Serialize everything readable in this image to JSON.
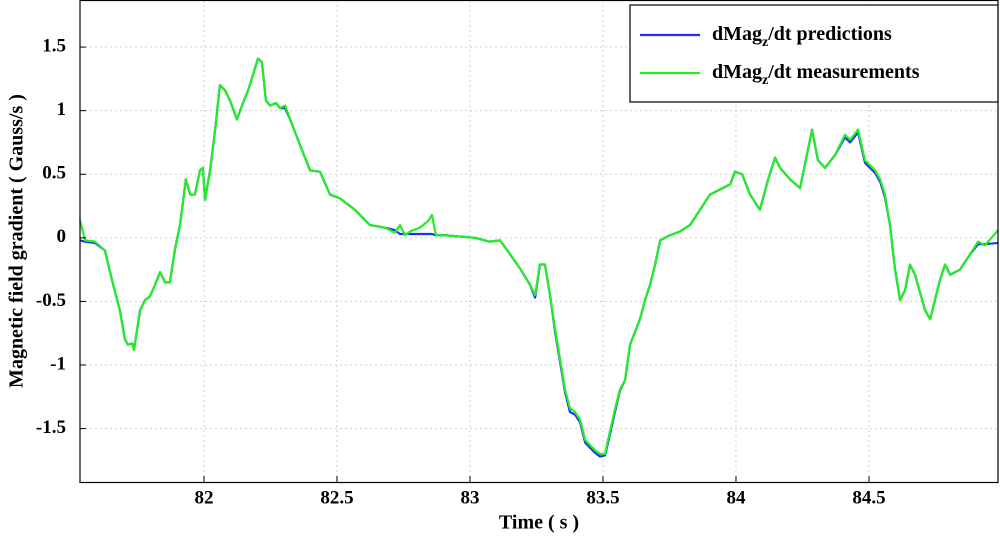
{
  "chart_data": {
    "type": "line",
    "x_label": "Time ( s )",
    "y_label": "Magnetic field gradient ( Gauss/s )",
    "xlim": [
      81.534,
      84.985
    ],
    "ylim": [
      -1.92,
      1.87
    ],
    "xticks": [
      82,
      82.5,
      83,
      83.5,
      84,
      84.5
    ],
    "yticks": [
      -1.5,
      -1,
      -0.5,
      0,
      0.5,
      1,
      1.5
    ],
    "grid": true,
    "legend": "upper right",
    "x": [
      81.534,
      81.553,
      81.59,
      81.628,
      81.654,
      81.684,
      81.703,
      81.714,
      81.73,
      81.737,
      81.76,
      81.778,
      81.797,
      81.816,
      81.835,
      81.854,
      81.872,
      81.891,
      81.91,
      81.932,
      81.948,
      81.966,
      81.985,
      81.996,
      82.004,
      82.023,
      82.042,
      82.06,
      82.079,
      82.098,
      82.124,
      82.143,
      82.166,
      82.184,
      82.203,
      82.218,
      82.233,
      82.248,
      82.271,
      82.286,
      82.305,
      82.324,
      82.361,
      82.399,
      82.436,
      82.474,
      82.511,
      82.568,
      82.624,
      82.681,
      82.718,
      82.737,
      82.756,
      82.775,
      82.812,
      82.842,
      82.857,
      82.872,
      82.906,
      82.963,
      83.019,
      83.075,
      83.113,
      83.151,
      83.188,
      83.226,
      83.245,
      83.263,
      83.282,
      83.301,
      83.32,
      83.339,
      83.357,
      83.376,
      83.395,
      83.414,
      83.433,
      83.451,
      83.47,
      83.489,
      83.508,
      83.519,
      83.545,
      83.564,
      83.583,
      83.602,
      83.639,
      83.658,
      83.677,
      83.696,
      83.715,
      83.752,
      83.79,
      83.827,
      83.865,
      83.902,
      83.94,
      83.978,
      83.996,
      84.023,
      84.053,
      84.09,
      84.121,
      84.147,
      84.166,
      84.203,
      84.241,
      84.286,
      84.308,
      84.335,
      84.372,
      84.41,
      84.429,
      84.459,
      84.485,
      84.523,
      84.542,
      84.56,
      84.579,
      84.598,
      84.617,
      84.636,
      84.654,
      84.673,
      84.711,
      84.73,
      84.748,
      84.767,
      84.786,
      84.805,
      84.842,
      84.88,
      84.91,
      84.936,
      84.985
    ],
    "series": [
      {
        "name": [
          "dMag",
          "z",
          "/dt predictions"
        ],
        "color": "#1f2fff",
        "values": [
          -0.02,
          -0.03,
          -0.04,
          -0.1,
          -0.33,
          -0.57,
          -0.8,
          -0.84,
          -0.83,
          -0.88,
          -0.57,
          -0.49,
          -0.46,
          -0.37,
          -0.27,
          -0.35,
          -0.35,
          -0.09,
          0.1,
          0.46,
          0.34,
          0.34,
          0.53,
          0.55,
          0.3,
          0.53,
          0.85,
          1.2,
          1.16,
          1.08,
          0.93,
          1.04,
          1.16,
          1.28,
          1.41,
          1.38,
          1.08,
          1.04,
          1.06,
          1.02,
          1.02,
          0.93,
          0.73,
          0.53,
          0.52,
          0.34,
          0.31,
          0.22,
          0.1,
          0.08,
          0.06,
          0.03,
          0.03,
          0.03,
          0.03,
          0.03,
          0.03,
          0.02,
          0.02,
          0.01,
          0,
          -0.03,
          -0.02,
          -0.13,
          -0.24,
          -0.37,
          -0.47,
          -0.21,
          -0.21,
          -0.45,
          -0.74,
          -0.98,
          -1.21,
          -1.37,
          -1.39,
          -1.45,
          -1.61,
          -1.65,
          -1.69,
          -1.72,
          -1.71,
          -1.61,
          -1.37,
          -1.2,
          -1.12,
          -0.84,
          -0.64,
          -0.49,
          -0.37,
          -0.21,
          -0.02,
          0.02,
          0.05,
          0.1,
          0.22,
          0.34,
          0.38,
          0.42,
          0.52,
          0.5,
          0.34,
          0.22,
          0.46,
          0.63,
          0.55,
          0.46,
          0.39,
          0.85,
          0.61,
          0.55,
          0.65,
          0.79,
          0.75,
          0.83,
          0.59,
          0.51,
          0.44,
          0.32,
          0.1,
          -0.25,
          -0.49,
          -0.41,
          -0.21,
          -0.29,
          -0.57,
          -0.64,
          -0.49,
          -0.33,
          -0.21,
          -0.29,
          -0.25,
          -0.13,
          -0.05,
          -0.05,
          -0.04
        ]
      },
      {
        "name": [
          "dMag",
          "z",
          "/dt measurements"
        ],
        "color": "#22ee22",
        "values": [
          0.14,
          -0.02,
          -0.03,
          -0.1,
          -0.33,
          -0.57,
          -0.8,
          -0.84,
          -0.83,
          -0.88,
          -0.57,
          -0.49,
          -0.46,
          -0.37,
          -0.27,
          -0.35,
          -0.35,
          -0.09,
          0.1,
          0.46,
          0.34,
          0.34,
          0.53,
          0.55,
          0.3,
          0.53,
          0.85,
          1.2,
          1.16,
          1.08,
          0.93,
          1.04,
          1.16,
          1.28,
          1.41,
          1.38,
          1.08,
          1.04,
          1.06,
          1.02,
          1.04,
          0.93,
          0.73,
          0.53,
          0.52,
          0.34,
          0.31,
          0.22,
          0.1,
          0.08,
          0.04,
          0.1,
          0.02,
          0.05,
          0.08,
          0.13,
          0.18,
          0.02,
          0.02,
          0.01,
          0,
          -0.03,
          -0.02,
          -0.13,
          -0.24,
          -0.37,
          -0.45,
          -0.21,
          -0.21,
          -0.45,
          -0.72,
          -0.96,
          -1.19,
          -1.34,
          -1.37,
          -1.43,
          -1.59,
          -1.63,
          -1.67,
          -1.7,
          -1.7,
          -1.59,
          -1.35,
          -1.19,
          -1.12,
          -0.84,
          -0.64,
          -0.49,
          -0.37,
          -0.21,
          -0.02,
          0.02,
          0.05,
          0.1,
          0.22,
          0.34,
          0.38,
          0.42,
          0.52,
          0.5,
          0.34,
          0.22,
          0.46,
          0.63,
          0.55,
          0.46,
          0.39,
          0.85,
          0.61,
          0.55,
          0.65,
          0.81,
          0.77,
          0.85,
          0.61,
          0.53,
          0.46,
          0.34,
          0.1,
          -0.25,
          -0.49,
          -0.41,
          -0.21,
          -0.29,
          -0.57,
          -0.64,
          -0.49,
          -0.33,
          -0.21,
          -0.29,
          -0.25,
          -0.13,
          -0.03,
          -0.06,
          0.06
        ]
      }
    ]
  }
}
